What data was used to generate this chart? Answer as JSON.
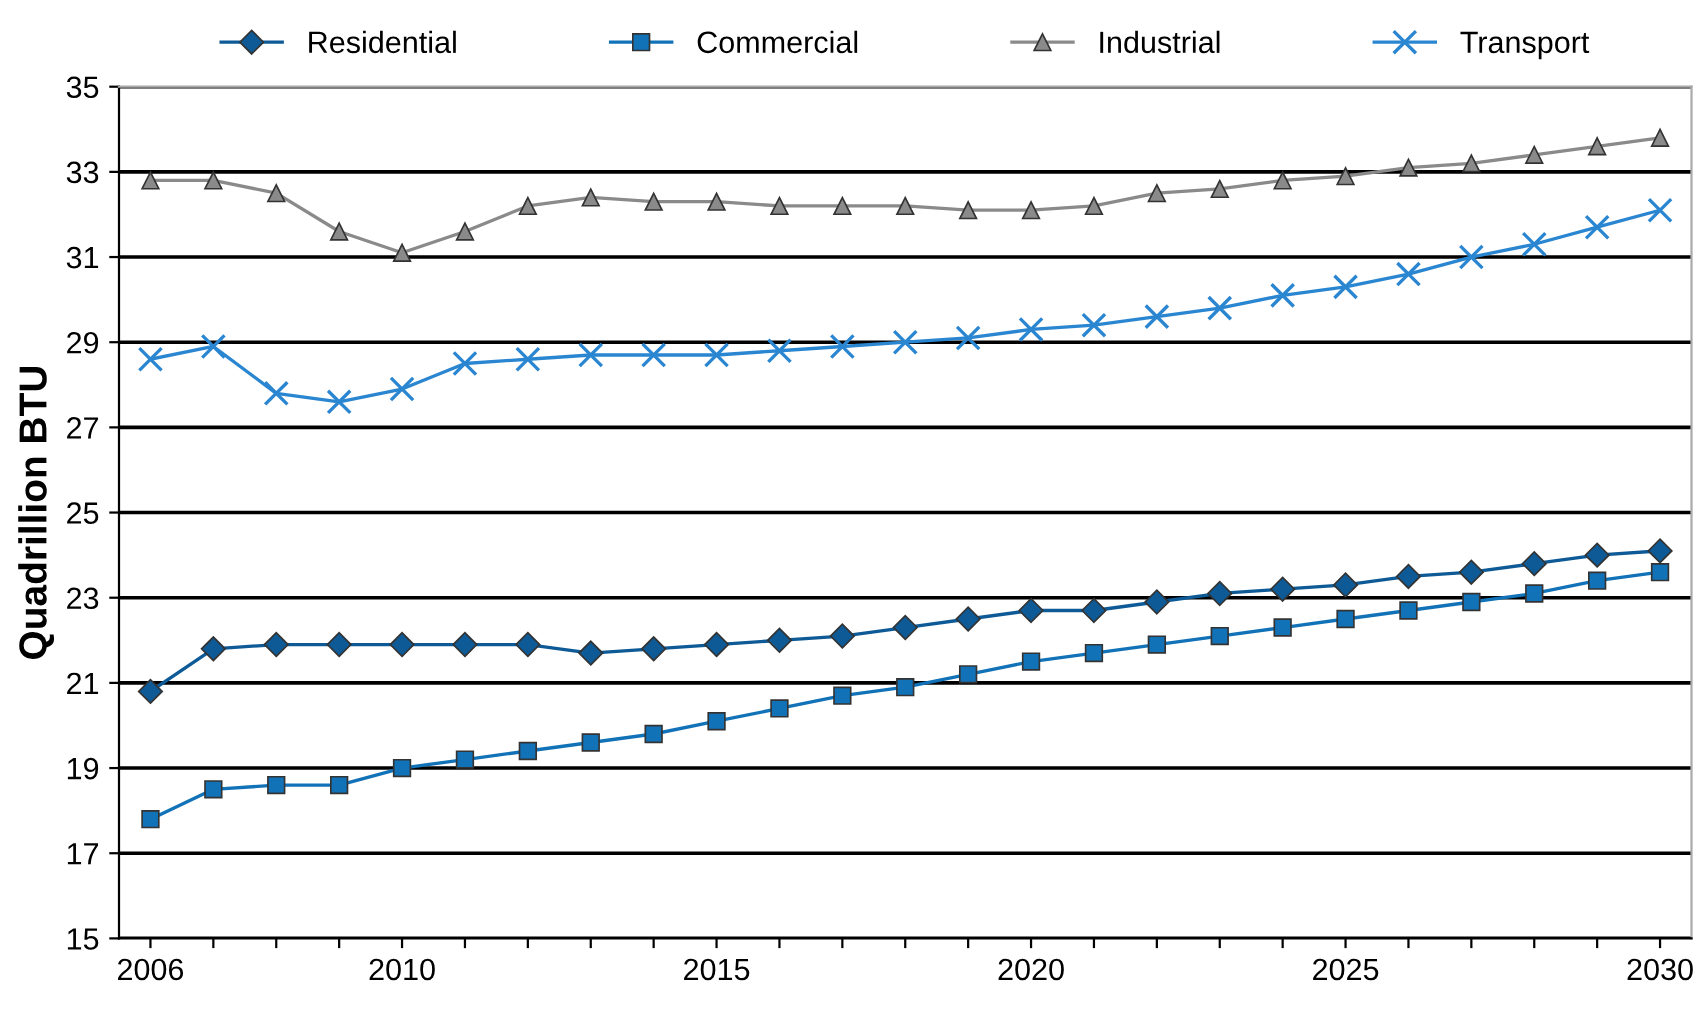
{
  "chart_data": {
    "type": "line",
    "ylabel": "Quadrillion BTU",
    "x": [
      2006,
      2007,
      2008,
      2009,
      2010,
      2011,
      2012,
      2013,
      2014,
      2015,
      2016,
      2017,
      2018,
      2019,
      2020,
      2021,
      2022,
      2023,
      2024,
      2025,
      2026,
      2027,
      2028,
      2029,
      2030
    ],
    "series": [
      {
        "name": "Residential",
        "color": "#0d5a96",
        "marker": "diamond",
        "values": [
          20.8,
          21.8,
          21.9,
          21.9,
          21.9,
          21.9,
          21.9,
          21.7,
          21.8,
          21.9,
          22.0,
          22.1,
          22.3,
          22.5,
          22.7,
          22.7,
          22.9,
          23.1,
          23.2,
          23.3,
          23.5,
          23.6,
          23.8,
          24.0,
          24.1
        ]
      },
      {
        "name": "Commercial",
        "color": "#1272b8",
        "marker": "square",
        "values": [
          17.8,
          18.5,
          18.6,
          18.6,
          19.0,
          19.2,
          19.4,
          19.6,
          19.8,
          20.1,
          20.4,
          20.7,
          20.9,
          21.2,
          21.5,
          21.7,
          21.9,
          22.1,
          22.3,
          22.5,
          22.7,
          22.9,
          23.1,
          23.4,
          23.6
        ]
      },
      {
        "name": "Industrial",
        "color": "#8a8a8a",
        "marker": "triangle",
        "values": [
          32.8,
          32.8,
          32.5,
          31.6,
          31.1,
          31.6,
          32.2,
          32.4,
          32.3,
          32.3,
          32.2,
          32.2,
          32.2,
          32.1,
          32.1,
          32.2,
          32.5,
          32.6,
          32.8,
          32.9,
          33.1,
          33.2,
          33.4,
          33.6,
          33.8
        ]
      },
      {
        "name": "Transport",
        "color": "#2a86d1",
        "marker": "cross",
        "values": [
          28.6,
          28.9,
          27.8,
          27.6,
          27.9,
          28.5,
          28.6,
          28.7,
          28.7,
          28.7,
          28.8,
          28.9,
          29.0,
          29.1,
          29.3,
          29.4,
          29.6,
          29.8,
          30.1,
          30.3,
          30.6,
          31.0,
          31.3,
          31.7,
          32.1
        ]
      }
    ],
    "xlim": [
      2005.5,
      2030.5
    ],
    "xticks": [
      2006,
      {
        "value": 2007,
        "label": null
      },
      {
        "value": 2008,
        "label": null
      },
      {
        "value": 2009,
        "label": null
      },
      2010,
      {
        "value": 2011,
        "label": null
      },
      {
        "value": 2012,
        "label": null
      },
      {
        "value": 2013,
        "label": null
      },
      {
        "value": 2014,
        "label": null
      },
      2015,
      {
        "value": 2016,
        "label": null
      },
      {
        "value": 2017,
        "label": null
      },
      {
        "value": 2018,
        "label": null
      },
      {
        "value": 2019,
        "label": null
      },
      2020,
      {
        "value": 2021,
        "label": null
      },
      {
        "value": 2022,
        "label": null
      },
      {
        "value": 2023,
        "label": null
      },
      {
        "value": 2024,
        "label": null
      },
      2025,
      {
        "value": 2026,
        "label": null
      },
      {
        "value": 2027,
        "label": null
      },
      {
        "value": 2028,
        "label": null
      },
      {
        "value": 2029,
        "label": null
      },
      2030
    ],
    "ylim": [
      15,
      35
    ],
    "yticks": [
      15,
      17,
      19,
      21,
      23,
      25,
      27,
      29,
      31,
      33,
      35
    ],
    "grid": "y",
    "legend": "top",
    "line_style": "solid"
  }
}
